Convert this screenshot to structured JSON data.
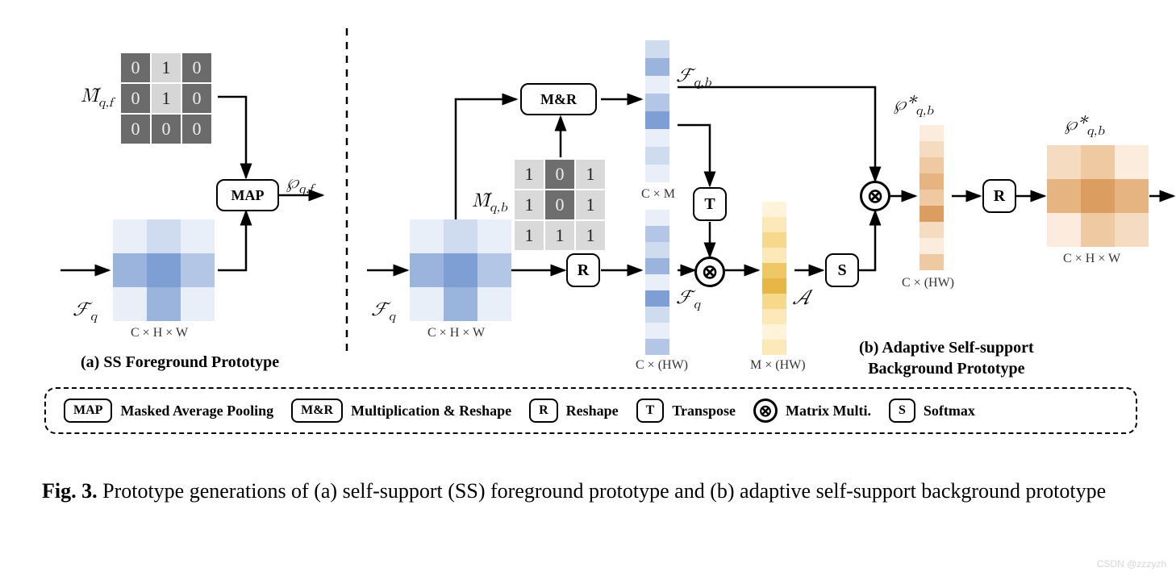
{
  "colors": {
    "grid_dark": "#6b6b6b",
    "grid_mid": "#9a9a9a",
    "grid_light": "#d6d6d6",
    "mask_dark": "#6e6e6e",
    "mask_light": "#d9d9d9",
    "blue": [
      "#e9eff8",
      "#cfdcf0",
      "#b3c6e6",
      "#9ab4de",
      "#7e9fd4",
      "#6b90cd"
    ],
    "yellow": [
      "#fff4da",
      "#fde9b8",
      "#f7d98c",
      "#efc865",
      "#e6b647",
      "#d9a130"
    ],
    "orange": [
      "#fbecdd",
      "#f5dcc1",
      "#efc9a1",
      "#e6b481",
      "#dc9e60",
      "#d18946"
    ]
  },
  "panelA": {
    "mask_label": "M̃",
    "mask_sub": "q,f",
    "mask_cells": [
      [
        0,
        1,
        0
      ],
      [
        0,
        1,
        0
      ],
      [
        0,
        0,
        0
      ]
    ],
    "mask_cell_styles": [
      [
        "dark",
        "light",
        "dark"
      ],
      [
        "dark",
        "light",
        "dark"
      ],
      [
        "dark",
        "dark",
        "dark"
      ]
    ],
    "feature_label": "ℱ",
    "feature_sub": "q",
    "feat_cells": [
      [
        0,
        1,
        0
      ],
      [
        3,
        4,
        2
      ],
      [
        0,
        3,
        0
      ]
    ],
    "feat_dim": "C × H × W",
    "op": "MAP",
    "out_label": "℘",
    "out_sub": "q,f",
    "caption": "(a) SS Foreground Prototype"
  },
  "panelB": {
    "feature_label": "ℱ",
    "feature_sub": "q",
    "feat_cells": [
      [
        0,
        1,
        0
      ],
      [
        3,
        4,
        2
      ],
      [
        0,
        3,
        0
      ]
    ],
    "feat_dim": "C × H × W",
    "mr_label": "M&R",
    "mask_label": "M̃",
    "mask_sub": "q,b",
    "mask_cells": [
      [
        1,
        0,
        1
      ],
      [
        1,
        0,
        1
      ],
      [
        1,
        1,
        1
      ]
    ],
    "mask_cell_styles": [
      [
        "light",
        "dark",
        "light"
      ],
      [
        "light",
        "dark",
        "light"
      ],
      [
        "light",
        "light",
        "light"
      ]
    ],
    "fqb_label": "ℱ",
    "fqb_sub": "q,b",
    "fqb_cells": [
      1,
      3,
      0,
      2,
      4,
      0,
      1,
      0
    ],
    "fqb_dim": "C × M",
    "r_label": "R",
    "fq2_sub": "q",
    "fq2_cells": [
      0,
      2,
      1,
      3,
      0,
      4,
      1,
      0,
      2
    ],
    "fq2_dim": "C × (HW)",
    "t_label": "T",
    "a_label": "𝒜",
    "a_cells": [
      0,
      1,
      2,
      1,
      3,
      4,
      2,
      1,
      0,
      1
    ],
    "a_dim": "M × (HW)",
    "s_label": "S",
    "pqb1_label": "℘*",
    "pqb1_sub": "q,b",
    "pqb1_cells": [
      0,
      1,
      2,
      3,
      2,
      4,
      1,
      0,
      2
    ],
    "pqb1_dim": "C × (HW)",
    "r2_label": "R",
    "pqb2_label": "℘*",
    "pqb2_sub": "q,b",
    "out_cells": [
      [
        1,
        2,
        0
      ],
      [
        3,
        4,
        3
      ],
      [
        0,
        2,
        1
      ]
    ],
    "out_dim": "C × H × W",
    "caption": "(b) Adaptive Self-support\nBackground Prototype",
    "matmul": "⊗"
  },
  "legend": {
    "map": {
      "badge": "MAP",
      "text": "Masked Average Pooling"
    },
    "mr": {
      "badge": "M&R",
      "text": "Multiplication & Reshape"
    },
    "r": {
      "badge": "R",
      "text": "Reshape"
    },
    "t": {
      "badge": "T",
      "text": "Transpose"
    },
    "mm": {
      "symbol": "⊗",
      "text": "Matrix Multi."
    },
    "s": {
      "badge": "S",
      "text": "Softmax"
    }
  },
  "figure": {
    "label": "Fig. 3.",
    "text": "Prototype generations of (a) self-support (SS) foreground prototype and (b) adaptive self-support background prototype"
  },
  "watermark": "CSDN @zzzyzh"
}
